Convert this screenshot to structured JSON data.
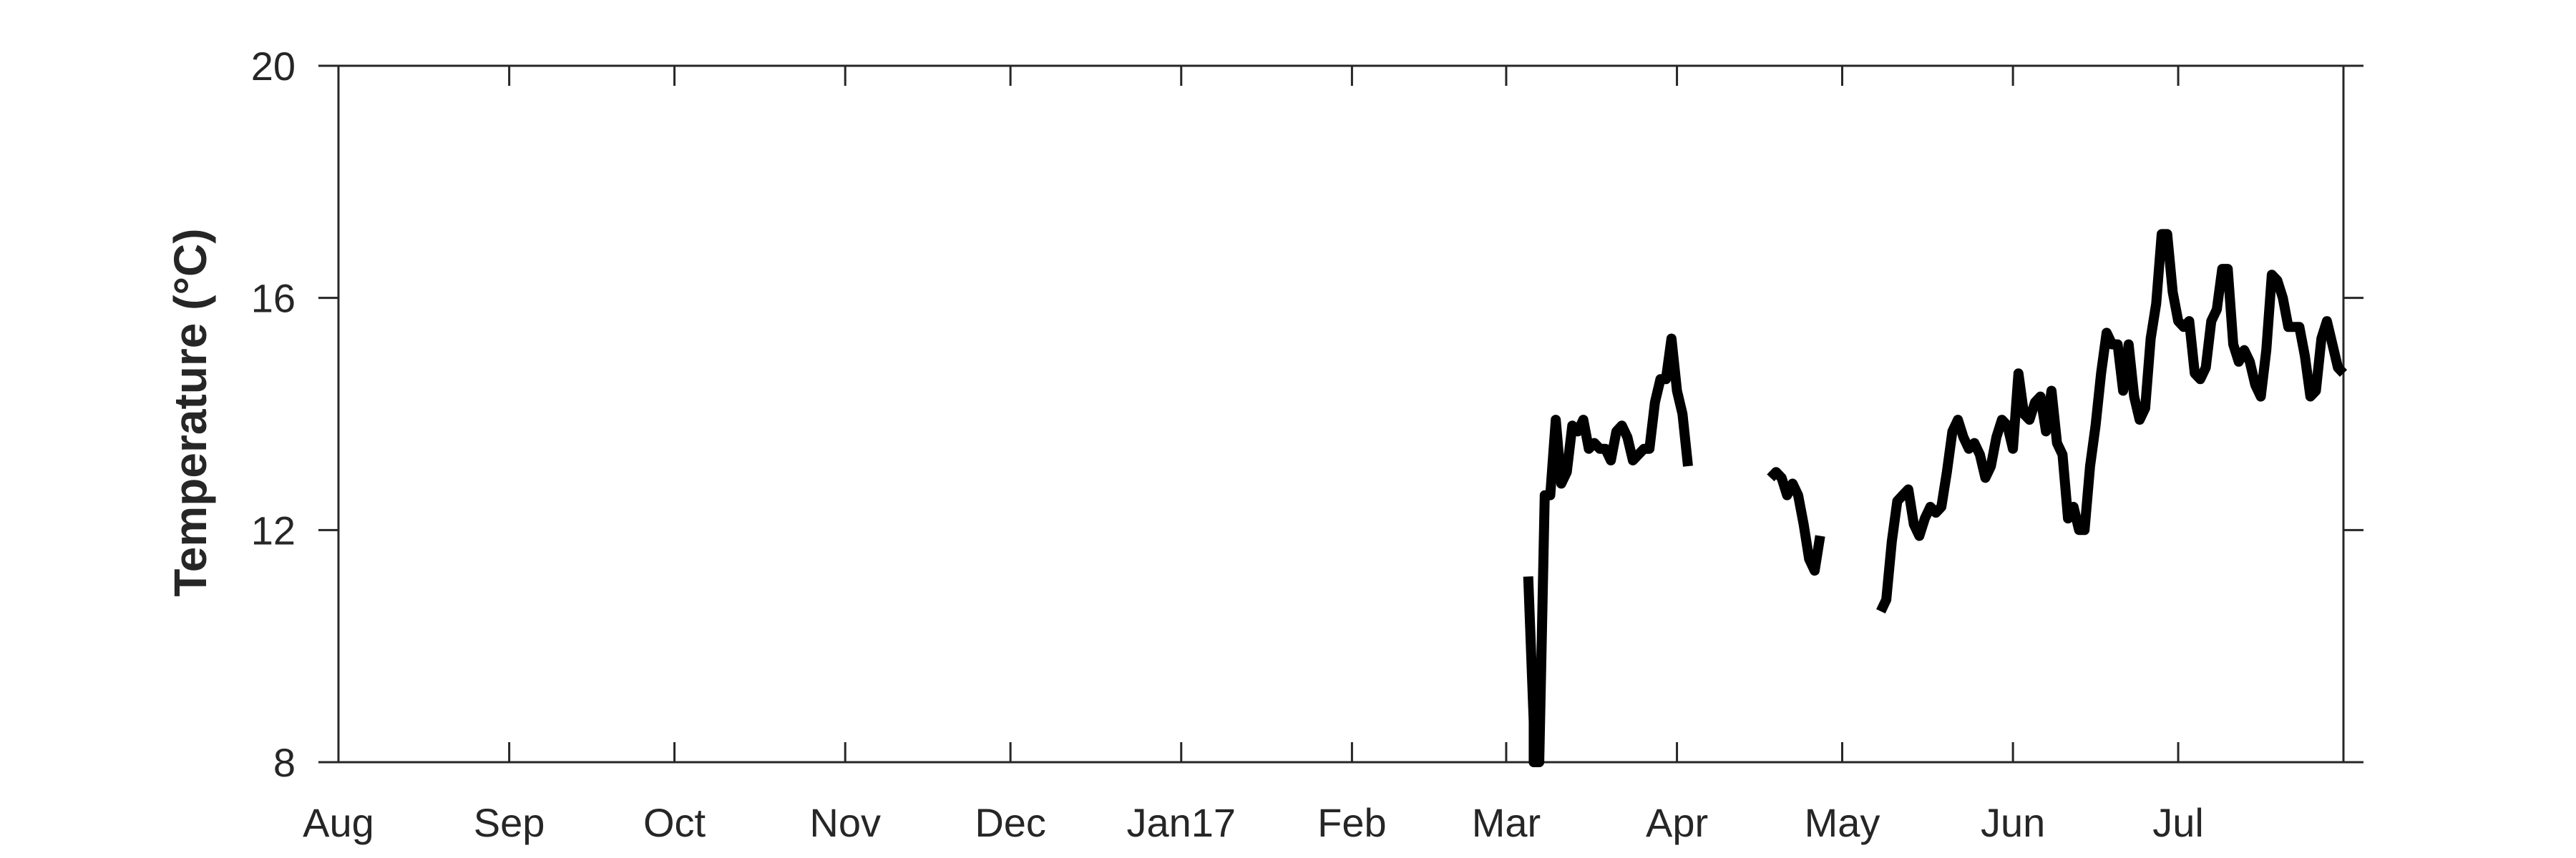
{
  "chart_data": {
    "type": "line",
    "xlabel": "",
    "ylabel": "Temperature (°C)",
    "ylim": [
      8,
      20
    ],
    "xlim": [
      "2016-08-01",
      "2017-07-31"
    ],
    "yticks": [
      "8",
      "12",
      "16",
      "20"
    ],
    "xticks": [
      {
        "label": "Aug",
        "date": "2016-08-01"
      },
      {
        "label": "Sep",
        "date": "2016-09-01"
      },
      {
        "label": "Oct",
        "date": "2016-10-01"
      },
      {
        "label": "Nov",
        "date": "2016-11-01"
      },
      {
        "label": "Dec",
        "date": "2016-12-01"
      },
      {
        "label": "Jan17",
        "date": "2017-01-01"
      },
      {
        "label": "Feb",
        "date": "2017-02-01"
      },
      {
        "label": "Mar",
        "date": "2017-03-01"
      },
      {
        "label": "Apr",
        "date": "2017-04-01"
      },
      {
        "label": "May",
        "date": "2017-05-01"
      },
      {
        "label": "Jun",
        "date": "2017-06-01"
      },
      {
        "label": "Jul",
        "date": "2017-07-01"
      }
    ],
    "grid": false,
    "line_color": "#000000",
    "segments": [
      [
        [
          "2017-03-05",
          11.2
        ],
        [
          "2017-03-06",
          8.7
        ],
        [
          "2017-03-06",
          8.0
        ],
        [
          "2017-03-07",
          8.0
        ],
        [
          "2017-03-08",
          12.6
        ],
        [
          "2017-03-09",
          12.6
        ],
        [
          "2017-03-10",
          13.9
        ],
        [
          "2017-03-11",
          12.8
        ],
        [
          "2017-03-12",
          13.0
        ],
        [
          "2017-03-13",
          13.8
        ],
        [
          "2017-03-14",
          13.7
        ],
        [
          "2017-03-15",
          13.9
        ],
        [
          "2017-03-16",
          13.4
        ],
        [
          "2017-03-17",
          13.5
        ],
        [
          "2017-03-18",
          13.4
        ],
        [
          "2017-03-19",
          13.4
        ],
        [
          "2017-03-20",
          13.2
        ],
        [
          "2017-03-21",
          13.7
        ],
        [
          "2017-03-22",
          13.8
        ],
        [
          "2017-03-23",
          13.6
        ],
        [
          "2017-03-24",
          13.2
        ],
        [
          "2017-03-25",
          13.3
        ],
        [
          "2017-03-26",
          13.4
        ],
        [
          "2017-03-27",
          13.4
        ],
        [
          "2017-03-28",
          14.2
        ],
        [
          "2017-03-29",
          14.6
        ],
        [
          "2017-03-30",
          14.6
        ],
        [
          "2017-03-31",
          15.3
        ],
        [
          "2017-04-01",
          14.4
        ],
        [
          "2017-04-02",
          14.0
        ],
        [
          "2017-04-03",
          13.1
        ]
      ],
      [
        [
          "2017-04-18",
          12.9
        ],
        [
          "2017-04-19",
          13.0
        ],
        [
          "2017-04-20",
          12.9
        ],
        [
          "2017-04-21",
          12.6
        ],
        [
          "2017-04-22",
          12.8
        ],
        [
          "2017-04-23",
          12.6
        ],
        [
          "2017-04-24",
          12.1
        ],
        [
          "2017-04-25",
          11.5
        ],
        [
          "2017-04-26",
          11.3
        ],
        [
          "2017-04-27",
          11.9
        ]
      ],
      [
        [
          "2017-05-08",
          10.6
        ],
        [
          "2017-05-09",
          10.8
        ],
        [
          "2017-05-10",
          11.8
        ],
        [
          "2017-05-11",
          12.5
        ],
        [
          "2017-05-12",
          12.6
        ],
        [
          "2017-05-13",
          12.7
        ],
        [
          "2017-05-14",
          12.1
        ],
        [
          "2017-05-15",
          11.9
        ],
        [
          "2017-05-16",
          12.2
        ],
        [
          "2017-05-17",
          12.4
        ],
        [
          "2017-05-18",
          12.3
        ],
        [
          "2017-05-19",
          12.4
        ],
        [
          "2017-05-20",
          13.0
        ],
        [
          "2017-05-21",
          13.7
        ],
        [
          "2017-05-22",
          13.9
        ],
        [
          "2017-05-23",
          13.6
        ],
        [
          "2017-05-24",
          13.4
        ],
        [
          "2017-05-25",
          13.5
        ],
        [
          "2017-05-26",
          13.3
        ],
        [
          "2017-05-27",
          12.9
        ],
        [
          "2017-05-28",
          13.1
        ],
        [
          "2017-05-29",
          13.6
        ],
        [
          "2017-05-30",
          13.9
        ],
        [
          "2017-05-31",
          13.8
        ],
        [
          "2017-06-01",
          13.4
        ],
        [
          "2017-06-02",
          14.7
        ],
        [
          "2017-06-03",
          14.0
        ],
        [
          "2017-06-04",
          13.9
        ],
        [
          "2017-06-05",
          14.2
        ],
        [
          "2017-06-06",
          14.3
        ],
        [
          "2017-06-07",
          13.7
        ],
        [
          "2017-06-08",
          14.4
        ],
        [
          "2017-06-09",
          13.5
        ],
        [
          "2017-06-10",
          13.3
        ],
        [
          "2017-06-11",
          12.2
        ],
        [
          "2017-06-12",
          12.4
        ],
        [
          "2017-06-13",
          12.0
        ],
        [
          "2017-06-14",
          12.0
        ],
        [
          "2017-06-15",
          13.1
        ],
        [
          "2017-06-16",
          13.8
        ],
        [
          "2017-06-17",
          14.7
        ],
        [
          "2017-06-18",
          15.4
        ],
        [
          "2017-06-19",
          15.2
        ],
        [
          "2017-06-20",
          15.2
        ],
        [
          "2017-06-21",
          14.4
        ],
        [
          "2017-06-22",
          15.2
        ],
        [
          "2017-06-23",
          14.3
        ],
        [
          "2017-06-24",
          13.9
        ],
        [
          "2017-06-25",
          14.1
        ],
        [
          "2017-06-26",
          15.3
        ],
        [
          "2017-06-27",
          15.9
        ],
        [
          "2017-06-28",
          17.1
        ],
        [
          "2017-06-29",
          17.1
        ],
        [
          "2017-06-30",
          16.1
        ],
        [
          "2017-07-01",
          15.6
        ],
        [
          "2017-07-02",
          15.5
        ],
        [
          "2017-07-03",
          15.6
        ],
        [
          "2017-07-04",
          14.7
        ],
        [
          "2017-07-05",
          14.6
        ],
        [
          "2017-07-06",
          14.8
        ],
        [
          "2017-07-07",
          15.6
        ],
        [
          "2017-07-08",
          15.8
        ],
        [
          "2017-07-09",
          16.5
        ],
        [
          "2017-07-10",
          16.5
        ],
        [
          "2017-07-11",
          15.2
        ],
        [
          "2017-07-12",
          14.9
        ],
        [
          "2017-07-13",
          15.1
        ],
        [
          "2017-07-14",
          14.9
        ],
        [
          "2017-07-15",
          14.5
        ],
        [
          "2017-07-16",
          14.3
        ],
        [
          "2017-07-17",
          15.1
        ],
        [
          "2017-07-18",
          16.4
        ],
        [
          "2017-07-19",
          16.3
        ],
        [
          "2017-07-20",
          16.0
        ],
        [
          "2017-07-21",
          15.5
        ],
        [
          "2017-07-22",
          15.5
        ],
        [
          "2017-07-23",
          15.5
        ],
        [
          "2017-07-24",
          15.0
        ],
        [
          "2017-07-25",
          14.3
        ],
        [
          "2017-07-26",
          14.4
        ],
        [
          "2017-07-27",
          15.3
        ],
        [
          "2017-07-28",
          15.6
        ],
        [
          "2017-07-29",
          15.2
        ],
        [
          "2017-07-30",
          14.8
        ],
        [
          "2017-07-31",
          14.7
        ]
      ]
    ]
  }
}
